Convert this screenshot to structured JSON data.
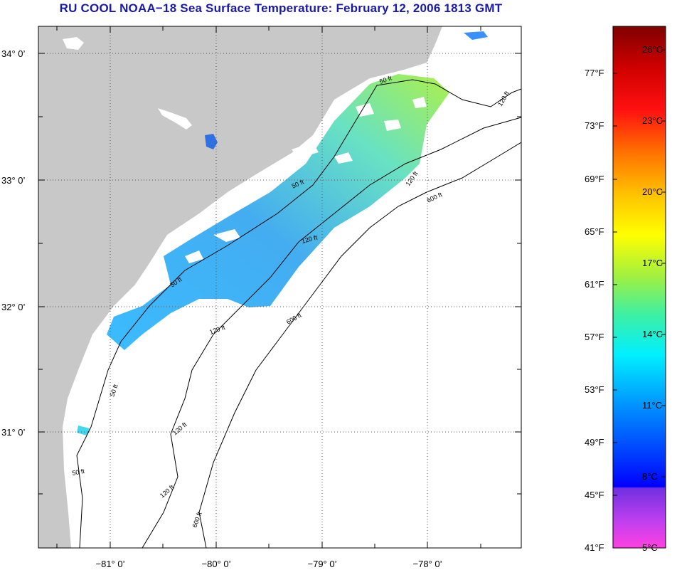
{
  "title": "RU COOL  NOAA−18  Sea Surface Temperature:  February 12, 2006 1813 GMT",
  "map": {
    "lat_labels": [
      "34° 0’",
      "33° 0’",
      "32° 0’",
      "31° 0’"
    ],
    "lon_labels": [
      "−81° 0’",
      "−80° 0’",
      "−79° 0’",
      "−78° 0’"
    ],
    "contour_labels": [
      "50 ft",
      "120 ft",
      "600 ft"
    ],
    "colors": {
      "land": "#c8c8c8",
      "water": "#ffffff",
      "grid": "#555555"
    }
  },
  "colorbar": {
    "fahrenheit_labels": [
      "77°F",
      "73°F",
      "69°F",
      "65°F",
      "61°F",
      "57°F",
      "53°F",
      "49°F",
      "45°F",
      "41°F"
    ],
    "celsius_labels": [
      "26°C",
      "23°C",
      "20°C",
      "17°C",
      "14°C",
      "11°C",
      "8°C",
      "5°C"
    ]
  }
}
